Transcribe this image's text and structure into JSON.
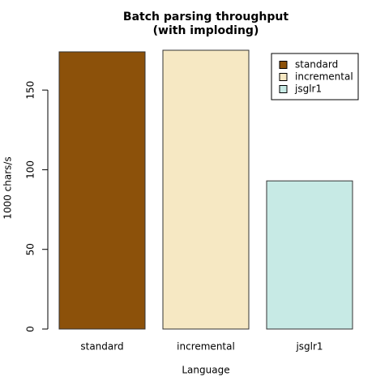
{
  "chart_data": {
    "type": "bar",
    "title": "Batch parsing throughput",
    "subtitle": "(with imploding)",
    "x_label": "Language",
    "y_label": "1000 chars/s",
    "categories": [
      "standard",
      "incremental",
      "jsglr1"
    ],
    "values": [
      174,
      175,
      93
    ],
    "colors": [
      "#8c510a",
      "#f6e8c3",
      "#c7eae5"
    ],
    "ylim": [
      0,
      175
    ],
    "yticks": [
      0,
      50,
      100,
      150
    ],
    "legend": "top-right"
  }
}
